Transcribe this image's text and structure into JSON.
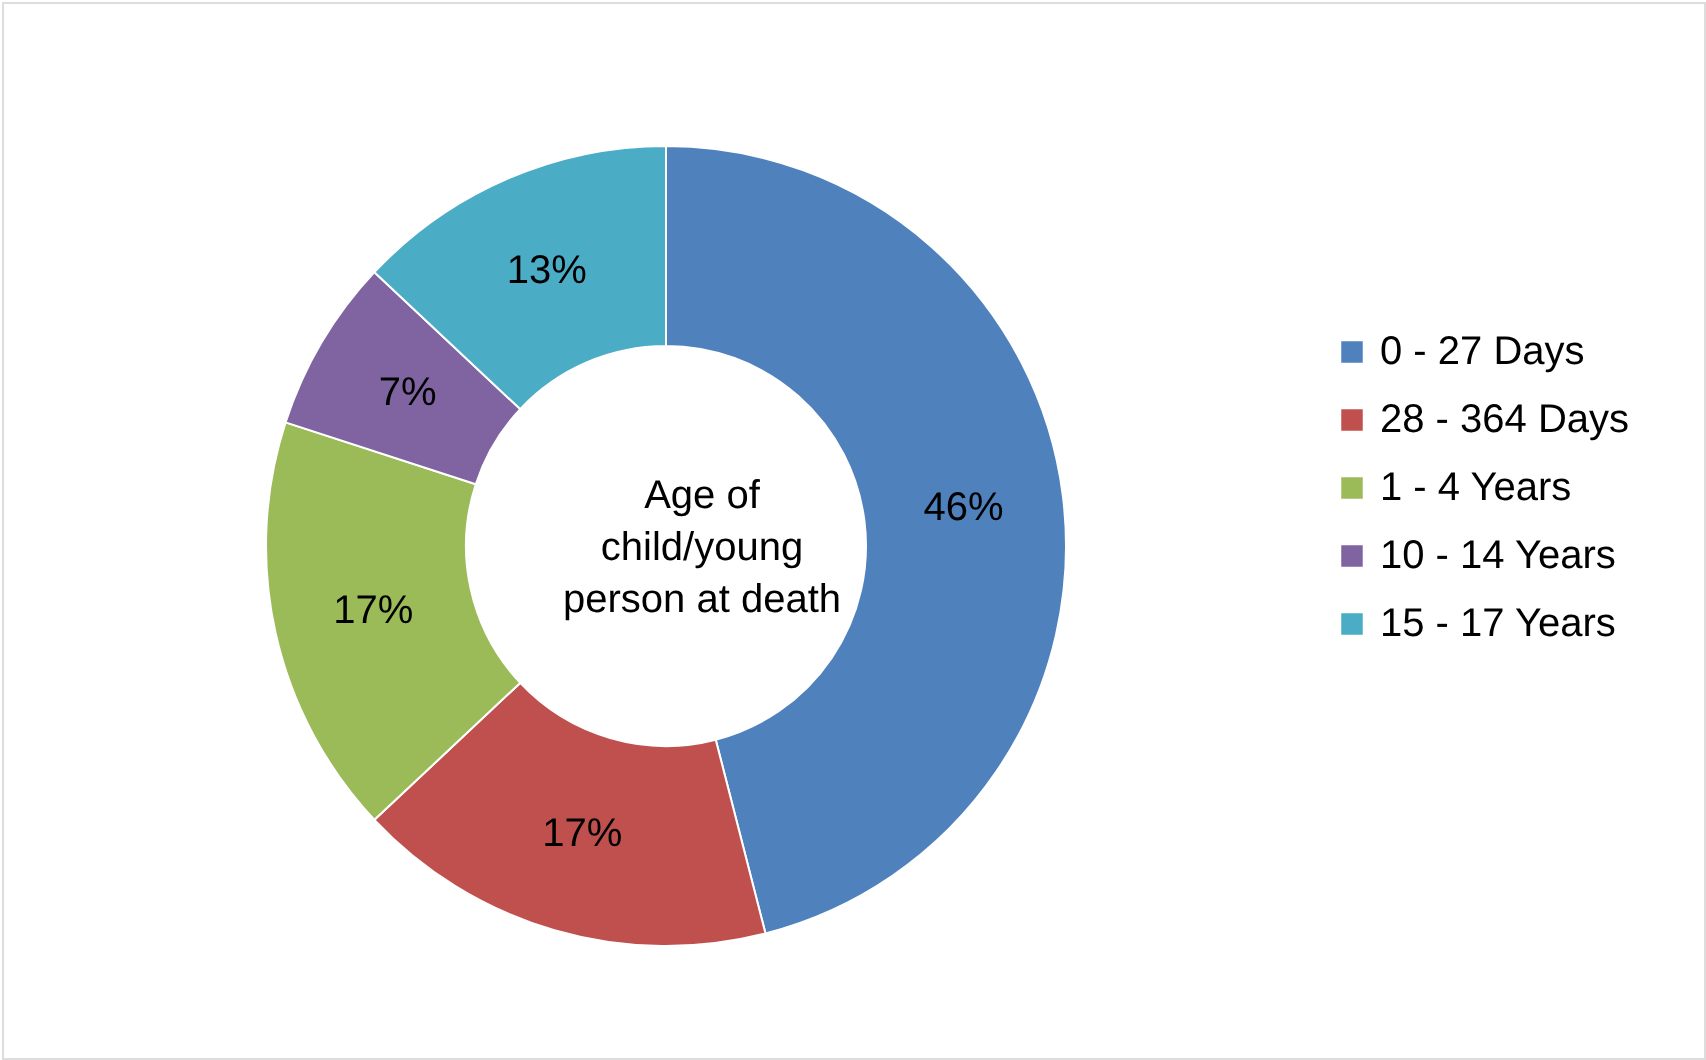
{
  "chart_data": {
    "type": "donut",
    "title": "Age of child/young person at death",
    "categories": [
      "0 - 27 Days",
      "28 - 364 Days",
      "1 - 4 Years",
      "10 - 14 Years",
      "15 - 17 Years"
    ],
    "values": [
      46,
      17,
      17,
      7,
      13
    ],
    "value_labels": [
      "46%",
      "17%",
      "17%",
      "7%",
      "13%"
    ],
    "colors": [
      "#4f81bd",
      "#c0504d",
      "#9bbb59",
      "#8064a2",
      "#4bacc6"
    ],
    "legend": "right"
  }
}
